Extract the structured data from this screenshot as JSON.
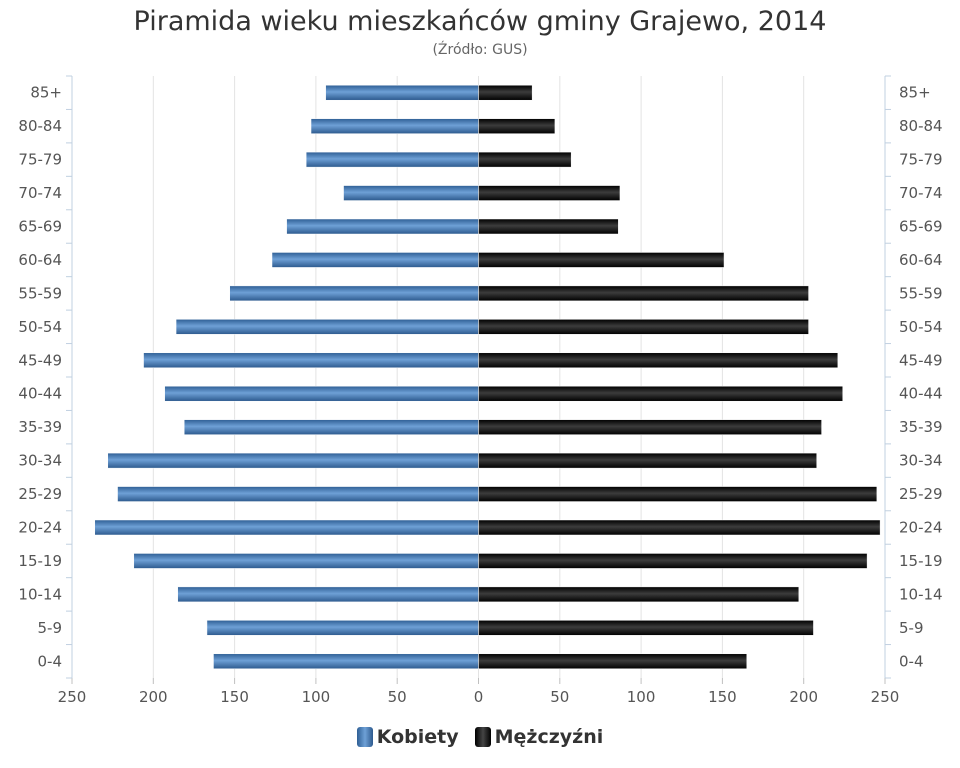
{
  "chart_data": {
    "type": "bar",
    "title": "Piramida wieku mieszkańców gminy Grajewo, 2014",
    "subtitle": "(Źródło: GUS)",
    "categories": [
      "85+",
      "80-84",
      "75-79",
      "70-74",
      "65-69",
      "60-64",
      "55-59",
      "50-54",
      "45-49",
      "40-44",
      "35-39",
      "30-34",
      "25-29",
      "20-24",
      "15-19",
      "10-14",
      "5-9",
      "0-4"
    ],
    "series": [
      {
        "name": "Kobiety",
        "color": "#4f87c2",
        "values": [
          94,
          103,
          106,
          83,
          118,
          127,
          153,
          186,
          206,
          193,
          181,
          228,
          222,
          236,
          212,
          185,
          167,
          163
        ]
      },
      {
        "name": "Mężczyźni",
        "color": "#1c1c1c",
        "values": [
          33,
          47,
          57,
          87,
          86,
          151,
          203,
          203,
          221,
          224,
          211,
          208,
          245,
          247,
          239,
          197,
          206,
          165
        ]
      }
    ],
    "xlim": [
      -250,
      250
    ],
    "x_ticks": [
      "250",
      "200",
      "150",
      "100",
      "50",
      "0",
      "50",
      "100",
      "150",
      "200",
      "250"
    ],
    "grid": true,
    "legend_position": "bottom-center"
  }
}
